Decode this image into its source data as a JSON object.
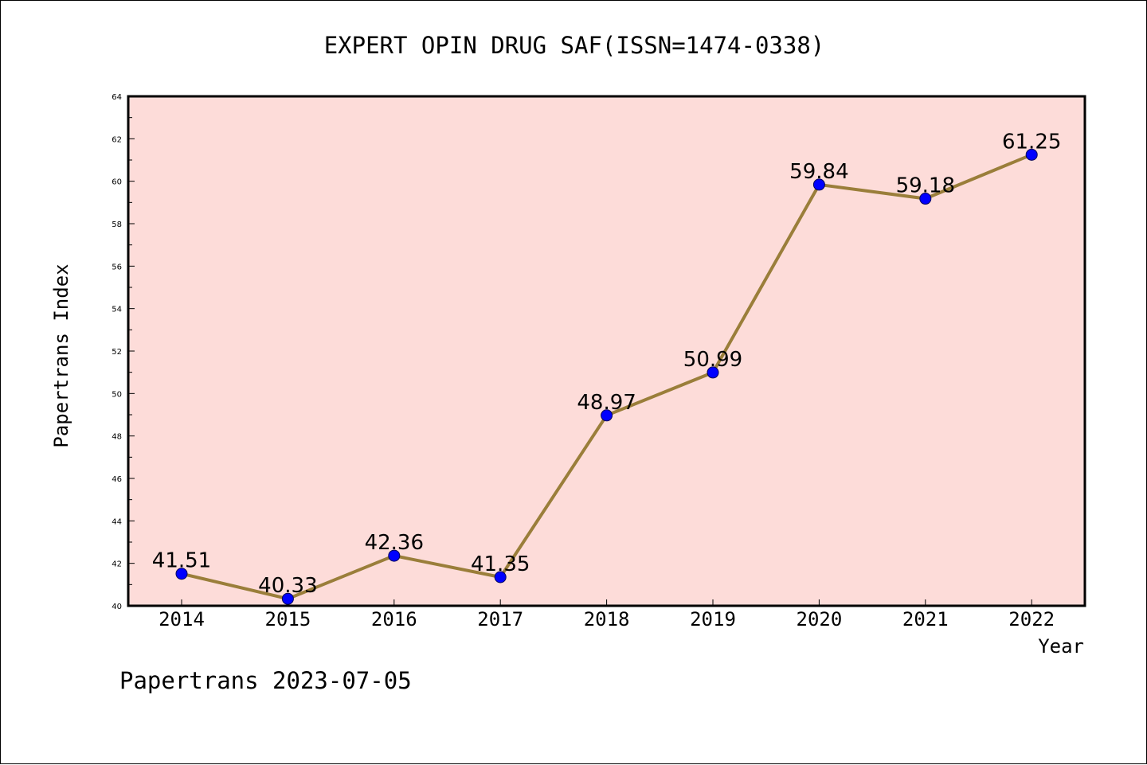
{
  "chart_data": {
    "type": "line",
    "title": "EXPERT OPIN DRUG SAF(ISSN=1474-0338)",
    "xlabel": "Year",
    "ylabel": "Papertrans Index",
    "categories": [
      "2014",
      "2015",
      "2016",
      "2017",
      "2018",
      "2019",
      "2020",
      "2021",
      "2022"
    ],
    "series": [
      {
        "values": [
          41.51,
          40.33,
          42.36,
          41.35,
          48.97,
          50.99,
          59.84,
          59.18,
          61.25
        ],
        "data_labels": [
          "41.51",
          "40.33",
          "42.36",
          "41.35",
          "48.97",
          "50.99",
          "59.84",
          "59.18",
          "61.25"
        ]
      }
    ],
    "ylim": [
      40,
      64
    ],
    "yticks": [
      "40",
      "42",
      "44",
      "46",
      "48",
      "50",
      "52",
      "54",
      "56",
      "58",
      "60",
      "62",
      "64"
    ],
    "grid": false,
    "legend": "none",
    "colors": {
      "plot_background": "#fddcd9",
      "line": "#9a7e3a",
      "marker_fill": "#0000ff",
      "marker_edge": "#00005a",
      "axis": "#000000"
    }
  },
  "footer": {
    "text": "Papertrans 2023-07-05"
  }
}
